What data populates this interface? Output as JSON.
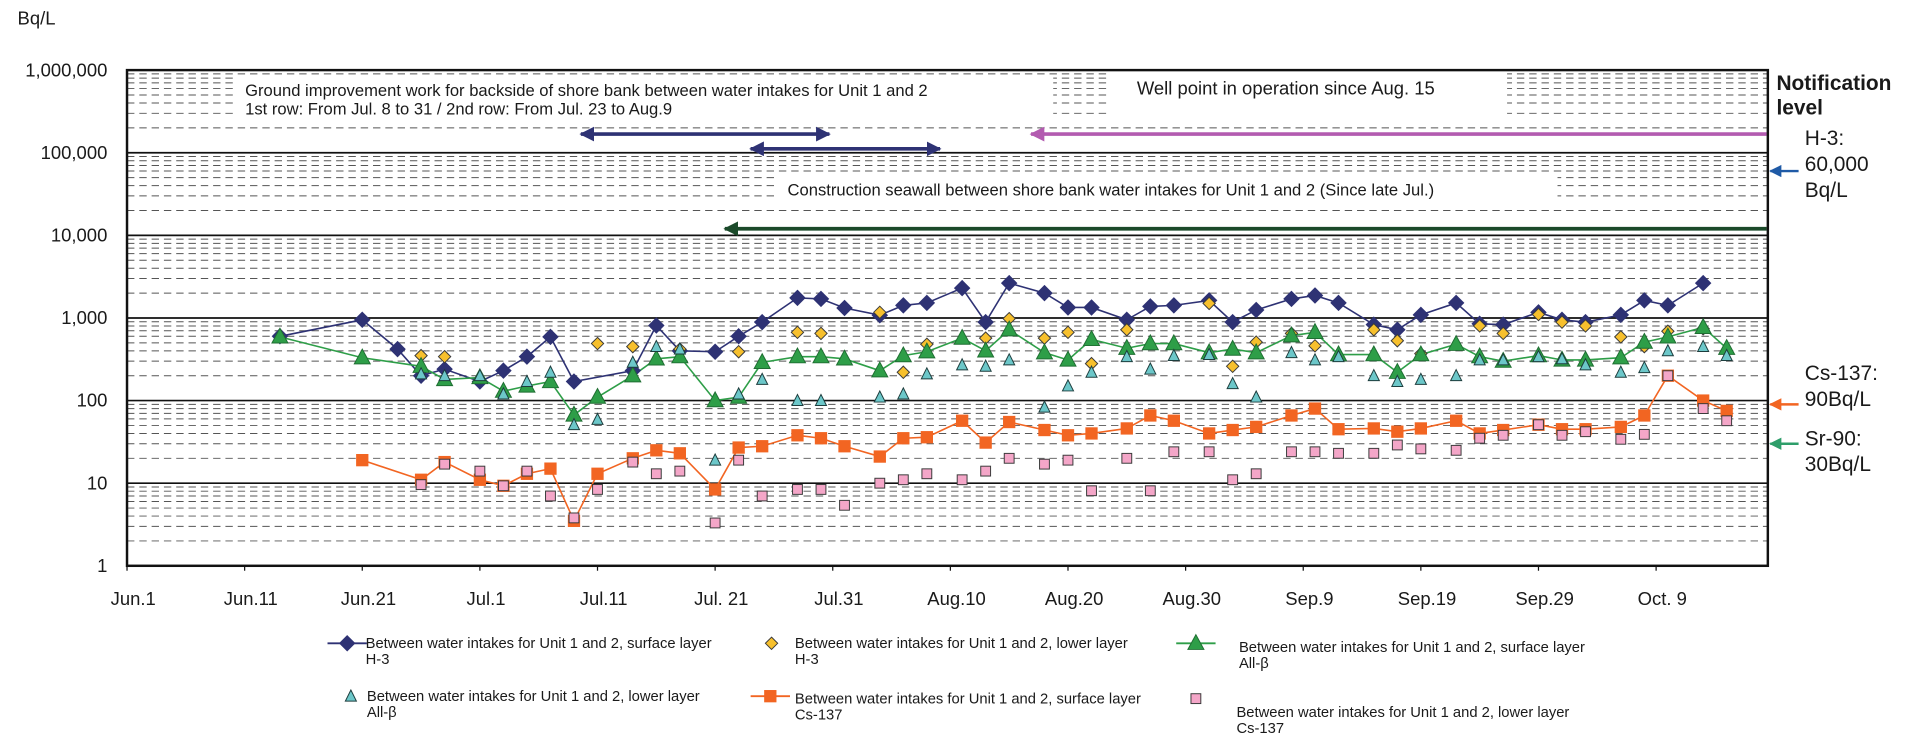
{
  "chart_data": {
    "type": "scatter",
    "y_label": "Bq/L",
    "log_y": true,
    "grid": true,
    "xlim": [
      0,
      139.5
    ],
    "ylim": [
      1,
      1000000
    ],
    "xticks": [
      {
        "value": 0,
        "label": "Jun.1"
      },
      {
        "value": 10,
        "label": "Jun.11"
      },
      {
        "value": 20,
        "label": "Jun.21"
      },
      {
        "value": 30,
        "label": "Jul.1"
      },
      {
        "value": 40,
        "label": "Jul.11"
      },
      {
        "value": 50,
        "label": "Jul. 21"
      },
      {
        "value": 60,
        "label": "Jul.31"
      },
      {
        "value": 70,
        "label": "Aug.10"
      },
      {
        "value": 80,
        "label": "Aug.20"
      },
      {
        "value": 90,
        "label": "Aug.30"
      },
      {
        "value": 100,
        "label": "Sep.9"
      },
      {
        "value": 110,
        "label": "Sep.19"
      },
      {
        "value": 120,
        "label": "Sep.29"
      },
      {
        "value": 130,
        "label": "Oct. 9"
      }
    ],
    "yticks": [
      1,
      10,
      {
        "value": 100,
        "label": "100"
      },
      {
        "value": 1000,
        "label": "1,000"
      },
      {
        "value": 10000,
        "label": "10,000"
      },
      {
        "value": 100000,
        "label": "100,000"
      },
      {
        "value": 1000000,
        "label": "1,000,000"
      }
    ],
    "annotations": [
      "Ground improvement work for backside of shore bank between water intakes for Unit 1 and 2",
      "1st row: From Jul. 8 to 31   /   2nd row: From Jul. 23 to Aug.9",
      "Well point in operation since Aug. 15",
      "Construction seawall between shore bank water intakes for Unit 1 and 2 (Since late Jul.)"
    ],
    "notification_title": "Notification\nlevel",
    "notification_levels": [
      {
        "text": "H-3:\n60,000\nBq/L",
        "value": 60000,
        "color": "#1f5aa6"
      },
      {
        "text": "Cs-137:\n90Bq/L",
        "value": 90,
        "color": "#f26522"
      },
      {
        "text": "Sr-90:\n30Bq/L",
        "value": 30,
        "color": "#2e9e6a"
      }
    ],
    "series": [
      {
        "name": "Between water intakes for Unit 1 and 2, surface layer\nH-3",
        "color": "#2e3274",
        "marker": "diamond",
        "line": true,
        "x": [
          13,
          20,
          23,
          25,
          27,
          30,
          32,
          34,
          36,
          38,
          43,
          45,
          47,
          50,
          52,
          54,
          57,
          59,
          61,
          64,
          66,
          68,
          71,
          73,
          75,
          78,
          80,
          82,
          85,
          87,
          89,
          92,
          94,
          96,
          99,
          101,
          103,
          106,
          108,
          110,
          113,
          115,
          117,
          120,
          122,
          124,
          127,
          129,
          131,
          134
        ],
        "values": [
          600,
          950,
          420,
          200,
          240,
          170,
          230,
          340,
          590,
          170,
          230,
          810,
          400,
          390,
          600,
          890,
          1750,
          1700,
          1320,
          1080,
          1420,
          1520,
          2300,
          890,
          2640,
          2000,
          1340,
          1340,
          950,
          1380,
          1420,
          1630,
          890,
          1250,
          1700,
          1870,
          1520,
          830,
          720,
          1090,
          1520,
          850,
          830,
          1170,
          950,
          890,
          1090,
          1630,
          1420,
          2640
        ]
      },
      {
        "name": "Between water intakes for Unit 1 and 2, lower layer\nH-3",
        "color": "#f7c02d",
        "marker": "diamond-small",
        "line": false,
        "x": [
          25,
          27,
          40,
          43,
          47,
          52,
          57,
          59,
          64,
          66,
          68,
          73,
          75,
          78,
          80,
          82,
          85,
          92,
          94,
          96,
          99,
          101,
          106,
          108,
          110,
          115,
          117,
          120,
          122,
          124,
          127,
          129,
          131,
          134
        ],
        "values": [
          350,
          340,
          490,
          450,
          420,
          390,
          670,
          650,
          1170,
          220,
          480,
          570,
          980,
          570,
          670,
          280,
          720,
          1500,
          260,
          510,
          650,
          460,
          720,
          530,
          370,
          800,
          650,
          1100,
          890,
          800,
          590,
          450,
          690,
          740
        ]
      },
      {
        "name": "Between water intakes for Unit 1 and 2, surface layer\nAll-β",
        "color": "#2e9e48",
        "marker": "triangle",
        "line": true,
        "x": [
          13,
          20,
          25,
          27,
          30,
          32,
          34,
          36,
          38,
          40,
          43,
          45,
          47,
          50,
          52,
          54,
          57,
          59,
          61,
          64,
          66,
          68,
          71,
          73,
          75,
          78,
          80,
          82,
          85,
          87,
          89,
          92,
          94,
          96,
          99,
          101,
          103,
          106,
          108,
          110,
          113,
          115,
          117,
          120,
          122,
          124,
          127,
          129,
          131,
          134,
          136
        ],
        "values": [
          590,
          330,
          260,
          180,
          190,
          130,
          150,
          170,
          67,
          110,
          200,
          320,
          340,
          100,
          110,
          290,
          340,
          340,
          320,
          230,
          350,
          390,
          570,
          400,
          720,
          380,
          310,
          550,
          430,
          490,
          490,
          380,
          420,
          380,
          610,
          670,
          360,
          360,
          220,
          360,
          480,
          340,
          300,
          350,
          310,
          310,
          330,
          510,
          590,
          770,
          430
        ]
      },
      {
        "name": "Between water intakes for Unit 1 and 2, lower layer\nAll-β",
        "color": "#6cc7c9",
        "marker": "triangle-small",
        "line": false,
        "x": [
          25,
          27,
          30,
          32,
          34,
          36,
          38,
          40,
          43,
          45,
          47,
          50,
          52,
          54,
          57,
          59,
          64,
          66,
          68,
          71,
          73,
          75,
          78,
          80,
          82,
          85,
          87,
          89,
          92,
          94,
          96,
          99,
          101,
          103,
          106,
          108,
          110,
          113,
          115,
          117,
          120,
          122,
          124,
          127,
          129,
          131,
          134,
          136
        ],
        "values": [
          210,
          200,
          200,
          120,
          170,
          220,
          51,
          59,
          290,
          450,
          420,
          19,
          120,
          180,
          100,
          100,
          110,
          120,
          210,
          270,
          260,
          310,
          83,
          150,
          220,
          340,
          240,
          350,
          360,
          160,
          110,
          380,
          310,
          340,
          200,
          170,
          180,
          200,
          310,
          310,
          340,
          320,
          270,
          220,
          250,
          400,
          450,
          350
        ]
      },
      {
        "name": "Between water intakes for Unit 1 and 2, surface layer\nCs-137",
        "color": "#f26522",
        "marker": "square",
        "line": true,
        "x": [
          20,
          25,
          27,
          30,
          32,
          34,
          36,
          38,
          40,
          43,
          45,
          47,
          50,
          52,
          54,
          57,
          59,
          61,
          64,
          66,
          68,
          71,
          73,
          75,
          78,
          80,
          82,
          85,
          87,
          89,
          92,
          94,
          96,
          99,
          101,
          103,
          106,
          108,
          110,
          113,
          115,
          117,
          120,
          122,
          124,
          127,
          129,
          131,
          134,
          136
        ],
        "values": [
          19,
          11,
          18,
          11,
          9.3,
          13,
          15,
          3.5,
          13,
          20,
          25,
          23,
          8.4,
          27,
          28,
          38,
          35,
          28,
          21,
          35,
          36,
          57,
          31,
          55,
          44,
          38,
          40,
          46,
          66,
          57,
          40,
          44,
          48,
          66,
          80,
          45,
          46,
          42,
          46,
          57,
          40,
          44,
          51,
          45,
          45,
          48,
          66,
          200,
          100,
          75
        ]
      },
      {
        "name": "Between water intakes for Unit 1 and 2, lower layer\nCs-137",
        "color": "#f4a6c8",
        "marker": "square-small",
        "line": false,
        "x": [
          25,
          27,
          30,
          32,
          34,
          36,
          38,
          40,
          43,
          45,
          47,
          50,
          52,
          54,
          57,
          59,
          61,
          64,
          66,
          68,
          71,
          73,
          75,
          78,
          80,
          82,
          85,
          87,
          89,
          92,
          94,
          96,
          99,
          101,
          103,
          106,
          108,
          110,
          113,
          115,
          117,
          120,
          122,
          124,
          127,
          129,
          131,
          134,
          136
        ],
        "values": [
          9.6,
          17,
          14,
          9.3,
          14,
          7,
          3.8,
          8.4,
          18,
          13,
          14,
          3.3,
          19,
          7,
          8.4,
          8.4,
          5.4,
          10,
          11,
          13,
          11,
          14,
          20,
          17,
          19,
          8.1,
          20,
          8.1,
          24,
          24,
          11,
          13,
          24,
          24,
          23,
          23,
          29,
          26,
          25,
          35,
          38,
          51,
          38,
          42,
          34,
          39,
          200,
          80,
          57
        ]
      }
    ]
  }
}
